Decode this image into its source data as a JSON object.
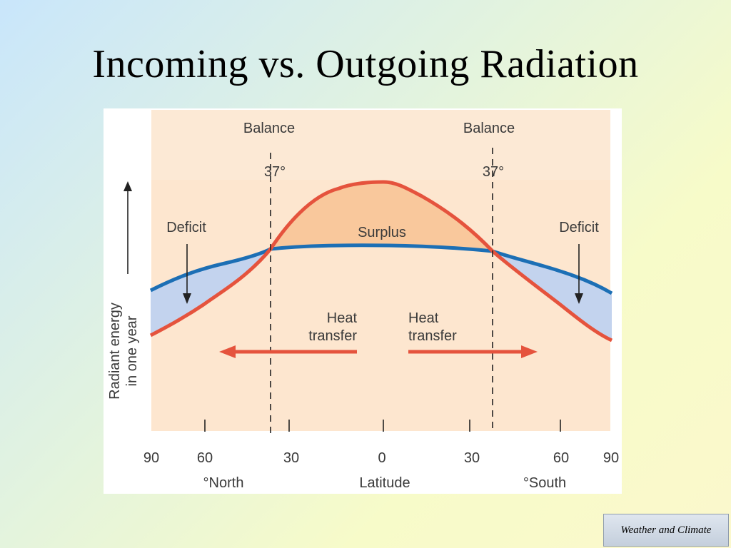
{
  "title": "Incoming vs. Outgoing Radiation",
  "footer": "Weather and Climate",
  "diagram": {
    "balance_label_left": "Balance",
    "balance_label_right": "Balance",
    "balance_lat_left": "37°",
    "balance_lat_right": "37°",
    "deficit_left": "Deficit",
    "deficit_right": "Deficit",
    "surplus": "Surplus",
    "heat_transfer_left_line1": "Heat",
    "heat_transfer_left_line2": "transfer",
    "heat_transfer_right_line1": "Heat",
    "heat_transfer_right_line2": "transfer",
    "y_axis_line1": "Radiant energy",
    "y_axis_line2": "in one year",
    "x_axis_label": "Latitude",
    "north_label": "°North",
    "south_label": "°South",
    "tick_labels": [
      "90",
      "60",
      "30",
      "0",
      "30",
      "60",
      "90"
    ],
    "colors": {
      "incoming_curve": "#e5533d",
      "outgoing_curve": "#1c6fb5",
      "surplus_fill": "#f9c89c",
      "deficit_fill": "#c3d3ee",
      "background_band": "#fde6cf",
      "heat_arrow": "#e5533d"
    }
  }
}
